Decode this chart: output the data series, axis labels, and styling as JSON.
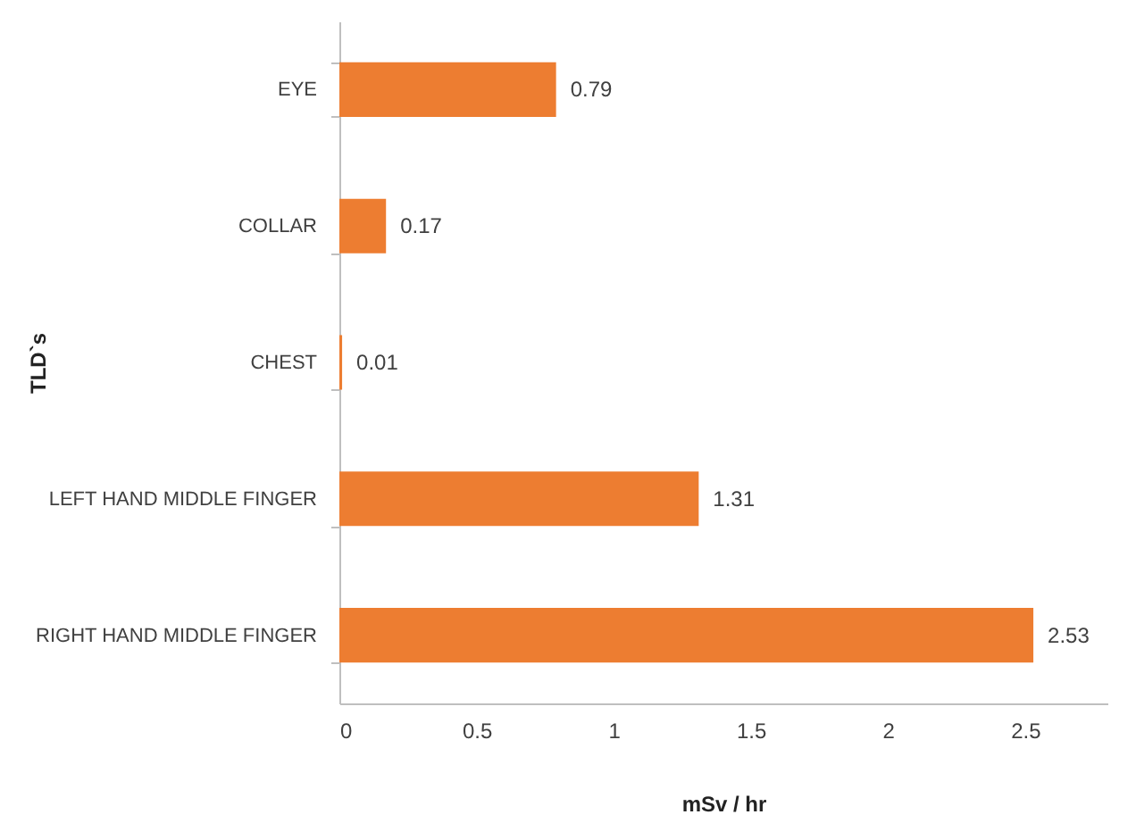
{
  "chart_data": {
    "type": "bar",
    "orientation": "horizontal",
    "xlabel": "mSv / hr",
    "ylabel": "TLD`s",
    "categories": [
      "EYE",
      "COLLAR",
      "CHEST",
      "LEFT HAND MIDDLE FINGER",
      "RIGHT HAND MIDDLE FINGER"
    ],
    "values": [
      0.79,
      0.17,
      0.01,
      1.31,
      2.53
    ],
    "color": "#ed7d31",
    "xlim": [
      0,
      2.8
    ],
    "xticks": [
      0,
      0.5,
      1,
      1.5,
      2,
      2.5
    ],
    "grid": false,
    "data_labels": true
  }
}
